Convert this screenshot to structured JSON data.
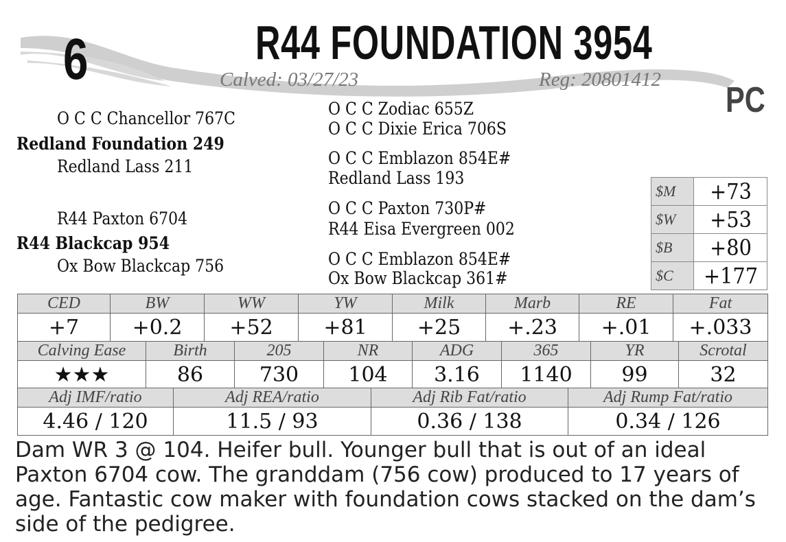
{
  "lot_number": "6",
  "title": "R44 FOUNDATION 3954",
  "calved": "Calved: 03/27/23",
  "reg": "Reg: 20801412",
  "badge": "PC",
  "pedigree": {
    "sire_sire": "O C C Chancellor 767C",
    "sire": "Redland Foundation 249",
    "sire_dam": "Redland Lass 211",
    "dam_sire": "R44 Paxton 6704",
    "dam": "R44 Blackcap 954",
    "dam_dam": "Ox Bow Blackcap 756",
    "right": [
      "O C C Zodiac 655Z",
      "O C C Dixie Erica 706S",
      "O C C Emblazon 854E#",
      "Redland Lass 193",
      "O C C Paxton 730P#",
      "R44 Eisa Evergreen 002",
      "O C C Emblazon 854E#",
      "Ox Bow Blackcap 361#"
    ]
  },
  "indexes": [
    {
      "label": "$M",
      "value": "+73"
    },
    {
      "label": "$W",
      "value": "+53"
    },
    {
      "label": "$B",
      "value": "+80"
    },
    {
      "label": "$C",
      "value": "+177"
    }
  ],
  "epds": {
    "headers": [
      "CED",
      "BW",
      "WW",
      "YW",
      "Milk",
      "Marb",
      "RE",
      "Fat"
    ],
    "values": [
      "+7",
      "+0.2",
      "+52",
      "+81",
      "+25",
      "+.23",
      "+.01",
      "+.033"
    ]
  },
  "performance": {
    "headers": [
      "Calving Ease",
      "Birth",
      "205",
      "NR",
      "ADG",
      "365",
      "YR",
      "Scrotal"
    ],
    "values": [
      "★★★",
      "86",
      "730",
      "104",
      "3.16",
      "1140",
      "99",
      "32"
    ]
  },
  "ultrasound": {
    "headers": [
      "Adj IMF/ratio",
      "Adj REA/ratio",
      "Adj Rib Fat/ratio",
      "Adj Rump Fat/ratio"
    ],
    "values": [
      "4.46 / 120",
      "11.5 / 93",
      "0.36 / 138",
      "0.34 / 126"
    ]
  },
  "description": "Dam WR 3 @ 104. Heifer bull. Younger bull that is out of an ideal Paxton 6704 cow. The granddam (756 cow) produced to 17 years of age. Fantastic cow maker with foundation cows stacked on the dam’s side of the pedigree."
}
